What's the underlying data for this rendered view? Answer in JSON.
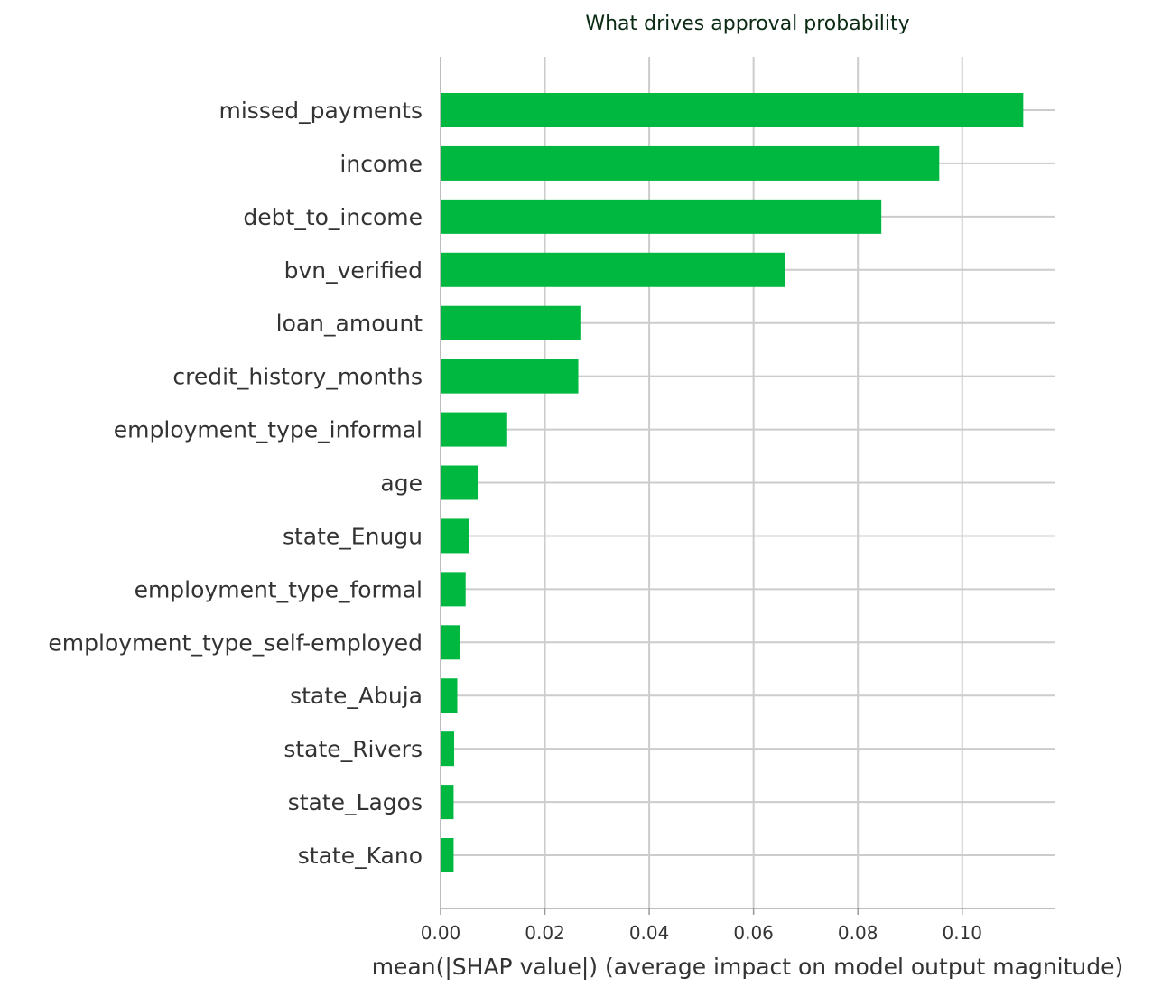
{
  "chart_data": {
    "type": "bar",
    "orientation": "horizontal",
    "title": "What drives approval probability",
    "xlabel": "mean(|SHAP value|) (average impact on model output magnitude)",
    "ylabel": "",
    "categories": [
      "missed_payments",
      "income",
      "debt_to_income",
      "bvn_verified",
      "loan_amount",
      "credit_history_months",
      "employment_type_informal",
      "age",
      "state_Enugu",
      "employment_type_formal",
      "employment_type_self-employed",
      "state_Abuja",
      "state_Rivers",
      "state_Lagos",
      "state_Kano"
    ],
    "values": [
      0.1117,
      0.0956,
      0.0845,
      0.0661,
      0.0268,
      0.0264,
      0.0126,
      0.0071,
      0.0054,
      0.0048,
      0.0038,
      0.0032,
      0.0026,
      0.0025,
      0.0025
    ],
    "xlim": [
      0,
      0.1177
    ],
    "xticks": [
      0.0,
      0.02,
      0.04,
      0.06,
      0.08,
      0.1
    ],
    "xtick_labels": [
      "0.00",
      "0.02",
      "0.04",
      "0.06",
      "0.08",
      "0.10"
    ],
    "grid": true,
    "legend": "none",
    "colors": {
      "bar": "#00b83f",
      "title": "#0b2a14",
      "text": "#333333",
      "grid": "#cccccc"
    }
  }
}
